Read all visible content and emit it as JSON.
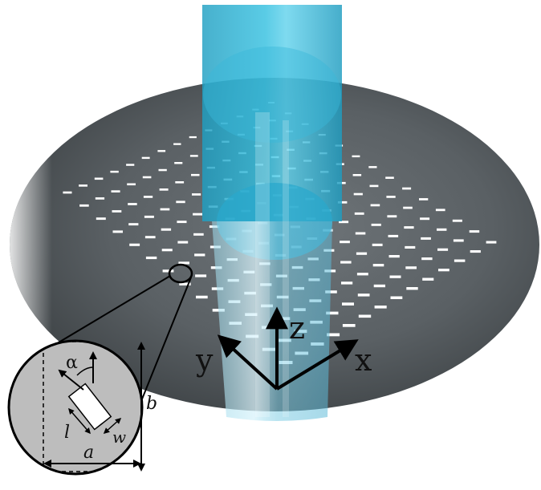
{
  "axes": {
    "x_label": "x",
    "y_label": "y",
    "z_label": "z"
  },
  "inset": {
    "angle_label": "α",
    "length_label": "l",
    "width_label": "w",
    "period_x_label": "a",
    "period_y_label": "b"
  },
  "array": {
    "rows": 14,
    "cols": 14
  },
  "colors": {
    "substrate": "#5c6266",
    "substrate_dark": "#3e4346",
    "beam": "#2ab4d6",
    "bars": "#ffffff",
    "inset_fill": "#bdbdbd"
  }
}
